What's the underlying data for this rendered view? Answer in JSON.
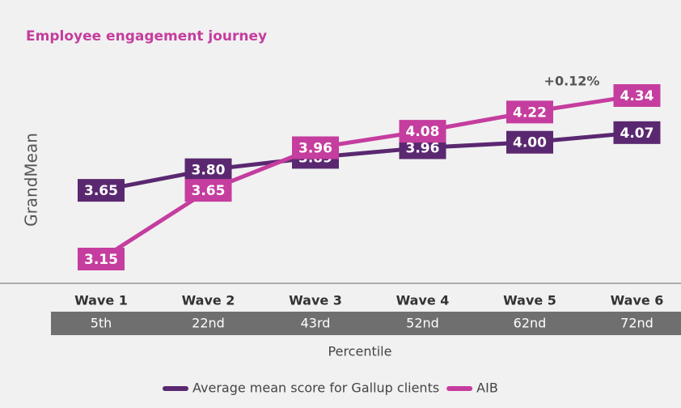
{
  "chart_data": {
    "type": "line",
    "title": "Employee engagement journey",
    "y_label": "GrandMean",
    "x_label": "Percentile",
    "annotation": "+0.12%",
    "categories": [
      "Wave 1",
      "Wave 2",
      "Wave 3",
      "Wave 4",
      "Wave 5",
      "Wave 6"
    ],
    "percentiles": [
      "5th",
      "22nd",
      "43rd",
      "52nd",
      "62nd",
      "72nd"
    ],
    "series": [
      {
        "name": "Average mean score for Gallup clients",
        "color": "#5a2870",
        "values": [
          3.65,
          3.8,
          3.89,
          3.96,
          4,
          4.07
        ],
        "value_labels": [
          "3.65",
          "3.80",
          "3.89",
          "3.96",
          "4.00",
          "4.07"
        ]
      },
      {
        "name": "AIB",
        "color": "#c53d9e",
        "values": [
          3.15,
          3.65,
          3.96,
          4.08,
          4.22,
          4.34
        ],
        "value_labels": [
          "3.15",
          "3.65",
          "3.96",
          "4.08",
          "4.22",
          "4.34"
        ]
      }
    ],
    "legend": "bottom"
  }
}
